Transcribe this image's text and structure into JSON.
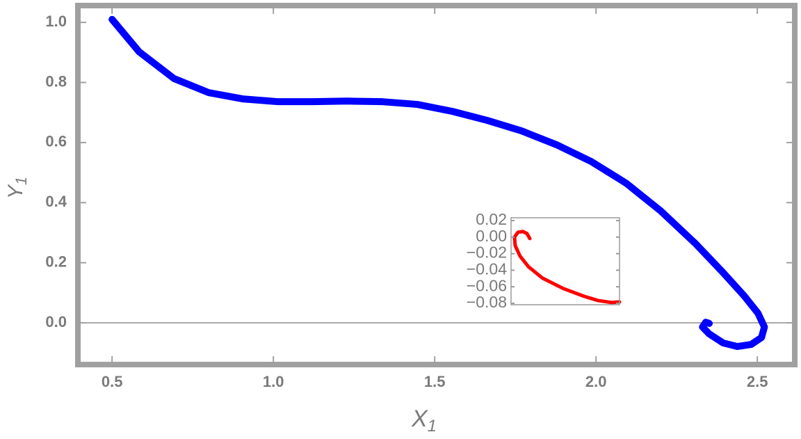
{
  "chart_data": [
    {
      "type": "line",
      "xlabel": "X",
      "xlabel_sub": "1",
      "ylabel": "Y",
      "ylabel_sub": "1",
      "xlim": [
        0.394,
        2.616
      ],
      "ylim": [
        -0.139,
        1.056
      ],
      "xticks": [
        0.5,
        {
          "value": 1,
          "label": "1.0"
        },
        1.5,
        {
          "value": 2,
          "label": "2.0"
        },
        2.5
      ],
      "yticks": [
        {
          "value": 0,
          "label": "0.0"
        },
        0.2,
        0.4,
        0.6,
        0.8,
        {
          "value": 1,
          "label": "1.0"
        }
      ],
      "zero_line": true,
      "series": [
        {
          "color": "#0000ff",
          "x": [
            0.5,
            0.584,
            0.692,
            0.8,
            0.907,
            1.015,
            1.123,
            1.23,
            1.338,
            1.446,
            1.554,
            1.662,
            1.769,
            1.877,
            1.985,
            2.093,
            2.2,
            2.308,
            2.394,
            2.459,
            2.502,
            2.522,
            2.513,
            2.481,
            2.438,
            2.394,
            2.351,
            2.33,
            2.34,
            2.351
          ],
          "values": [
            1.01,
            0.902,
            0.813,
            0.766,
            0.745,
            0.736,
            0.736,
            0.738,
            0.736,
            0.727,
            0.704,
            0.674,
            0.639,
            0.593,
            0.537,
            0.465,
            0.373,
            0.264,
            0.167,
            0.09,
            0.032,
            -0.014,
            -0.049,
            -0.072,
            -0.079,
            -0.067,
            -0.037,
            -0.014,
            0.002,
            -0.002
          ]
        }
      ]
    },
    {
      "type": "line",
      "xlim": [
        0,
        1
      ],
      "ylim": [
        -0.0817,
        0.0234
      ],
      "yticks": [
        {
          "value": 0.02,
          "label": "0.02"
        },
        {
          "value": 0,
          "label": "0.00"
        },
        {
          "value": -0.02,
          "label": "−0.02"
        },
        {
          "value": -0.04,
          "label": "−0.04"
        },
        {
          "value": -0.06,
          "label": "−0.06"
        },
        {
          "value": -0.08,
          "label": "−0.08"
        }
      ],
      "series": [
        {
          "color": "#ff0000",
          "x": [
            0.173,
            0.147,
            0.109,
            0.064,
            0.032,
            0.038,
            0.083,
            0.16,
            0.288,
            0.481,
            0.673,
            0.801,
            0.929,
            1.0
          ],
          "values": [
            -0.0017,
            0.0043,
            0.0068,
            0.006,
            0,
            -0.0102,
            -0.023,
            -0.0357,
            -0.0494,
            -0.0621,
            -0.0715,
            -0.0766,
            -0.0791,
            -0.0783
          ]
        }
      ]
    }
  ]
}
